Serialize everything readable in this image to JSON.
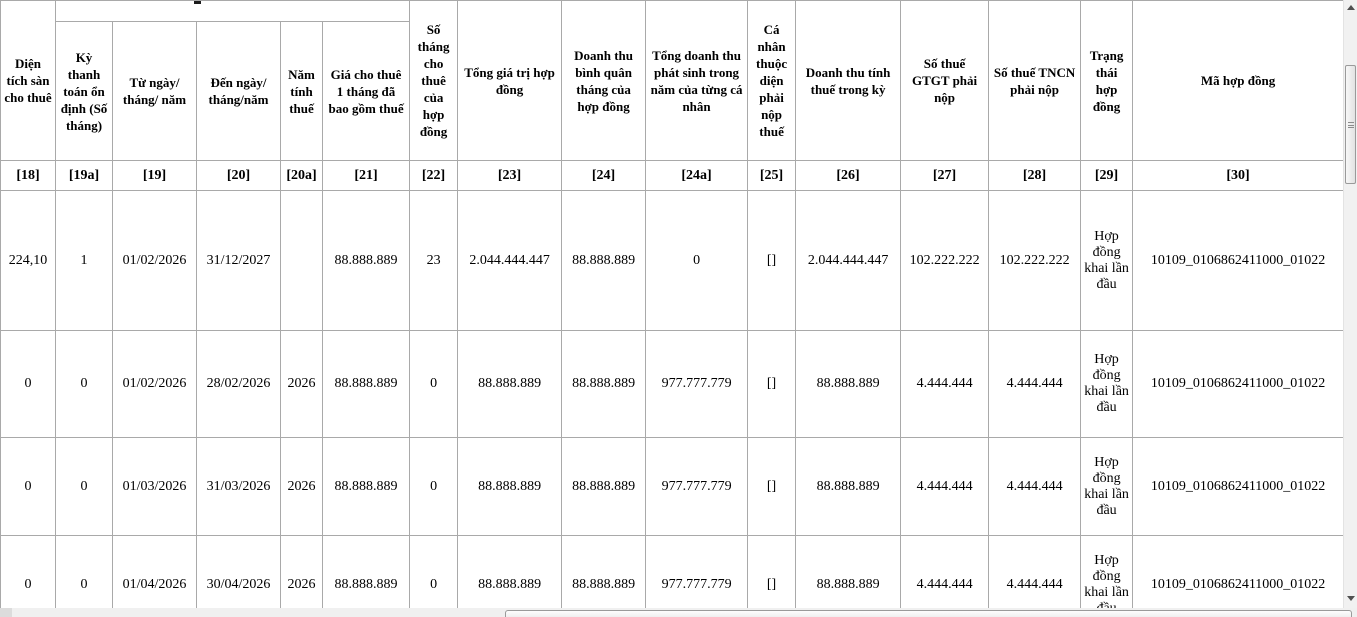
{
  "table": {
    "columns": [
      {
        "code": "[18]",
        "label": "Diện tích sàn cho thuê"
      },
      {
        "code": "[19a]",
        "label": "Kỳ thanh toán ổn định (Số tháng)"
      },
      {
        "code": "[19]",
        "label": "Từ ngày/ tháng/ năm"
      },
      {
        "code": "[20]",
        "label": "Đến ngày/ tháng/năm"
      },
      {
        "code": "[20a]",
        "label": "Năm tính thuế"
      },
      {
        "code": "[21]",
        "label": "Giá cho thuê 1 tháng đã bao gồm thuế"
      },
      {
        "code": "[22]",
        "label": "Số tháng cho thuê của hợp đồng"
      },
      {
        "code": "[23]",
        "label": "Tổng giá trị hợp đồng"
      },
      {
        "code": "[24]",
        "label": "Doanh thu bình quân tháng của hợp đồng"
      },
      {
        "code": "[24a]",
        "label": "Tổng doanh thu phát sinh trong năm của từng cá nhân"
      },
      {
        "code": "[25]",
        "label": "Cá nhân thuộc diện phải nộp thuế"
      },
      {
        "code": "[26]",
        "label": "Doanh thu tính thuế trong kỳ"
      },
      {
        "code": "[27]",
        "label": "Số thuế GTGT phải nộp"
      },
      {
        "code": "[28]",
        "label": "Số thuế TNCN phải nộp"
      },
      {
        "code": "[29]",
        "label": "Trạng thái hợp đồng"
      },
      {
        "code": "[30]",
        "label": "Mã hợp đồng"
      }
    ],
    "rows": [
      [
        "224,10",
        "1",
        "01/02/2026",
        "31/12/2027",
        "",
        "88.888.889",
        "23",
        "2.044.444.447",
        "88.888.889",
        "0",
        "[]",
        "2.044.444.447",
        "102.222.222",
        "102.222.222",
        "Hợp đồng khai lần đầu",
        "10109_0106862411000_01022"
      ],
      [
        "0",
        "0",
        "01/02/2026",
        "28/02/2026",
        "2026",
        "88.888.889",
        "0",
        "88.888.889",
        "88.888.889",
        "977.777.779",
        "[]",
        "88.888.889",
        "4.444.444",
        "4.444.444",
        "Hợp đồng khai lần đầu",
        "10109_0106862411000_01022"
      ],
      [
        "0",
        "0",
        "01/03/2026",
        "31/03/2026",
        "2026",
        "88.888.889",
        "0",
        "88.888.889",
        "88.888.889",
        "977.777.779",
        "[]",
        "88.888.889",
        "4.444.444",
        "4.444.444",
        "Hợp đồng khai lần đầu",
        "10109_0106862411000_01022"
      ],
      [
        "0",
        "0",
        "01/04/2026",
        "30/04/2026",
        "2026",
        "88.888.889",
        "0",
        "88.888.889",
        "88.888.889",
        "977.777.779",
        "[]",
        "88.888.889",
        "4.444.444",
        "4.444.444",
        "Hợp đồng khai lần đầu",
        "10109_0106862411000_01022"
      ]
    ]
  }
}
